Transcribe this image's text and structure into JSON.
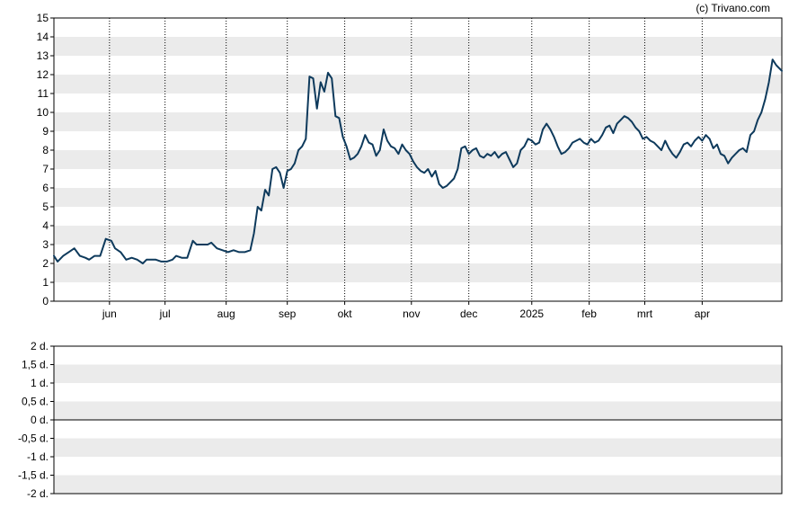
{
  "copyright": "(c) Trivano.com",
  "colors": {
    "line": "#0e3a5c",
    "band": "#ebebeb",
    "axis": "#000000",
    "grid": "#000000"
  },
  "chart_data": [
    {
      "type": "line",
      "ylim": [
        0,
        15
      ],
      "yticks": [
        "0",
        "1",
        "2",
        "3",
        "4",
        "5",
        "6",
        "7",
        "8",
        "9",
        "10",
        "11",
        "12",
        "13",
        "14",
        "15"
      ],
      "xticks": [
        "jun",
        "jul",
        "aug",
        "sep",
        "okt",
        "nov",
        "dec",
        "2025",
        "feb",
        "mrt",
        "apr"
      ],
      "xtick_days": [
        30,
        60,
        93,
        126,
        157,
        193,
        224,
        258,
        289,
        319,
        350
      ],
      "xlim": [
        0,
        393
      ],
      "grid": "vertical dotted at month starts, alternating horizontal bands",
      "series": [
        {
          "x": [
            0,
            2,
            5,
            8,
            11,
            14,
            17,
            19,
            22,
            25,
            28,
            31,
            33,
            36,
            39,
            42,
            45,
            48,
            50,
            52,
            55,
            58,
            61,
            64,
            66,
            69,
            72,
            75,
            77,
            80,
            83,
            85,
            88,
            91,
            94,
            97,
            100,
            103,
            106,
            108,
            110,
            112,
            114,
            116,
            118,
            120,
            122,
            124,
            126,
            128,
            130,
            132,
            134,
            136,
            138,
            140,
            142,
            144,
            146,
            148,
            150,
            152,
            154,
            156,
            158,
            160,
            162,
            164,
            166,
            168,
            170,
            172,
            174,
            176,
            178,
            180,
            182,
            184,
            186,
            188,
            190,
            192,
            194,
            196,
            198,
            200,
            202,
            204,
            206,
            208,
            210,
            212,
            214,
            216,
            218,
            220,
            222,
            224,
            226,
            228,
            230,
            232,
            234,
            236,
            238,
            240,
            242,
            244,
            246,
            248,
            250,
            252,
            254,
            256,
            258,
            260,
            262,
            264,
            266,
            268,
            270,
            272,
            274,
            276,
            278,
            280,
            282,
            284,
            286,
            288,
            290,
            292,
            294,
            296,
            298,
            300,
            302,
            304,
            306,
            308,
            310,
            312,
            314,
            316,
            318,
            320,
            322,
            324,
            326,
            328,
            330,
            332,
            334,
            336,
            338,
            340,
            342,
            344,
            346,
            348,
            350,
            352,
            354,
            356,
            358,
            360,
            362,
            364,
            366,
            368,
            370,
            372,
            374,
            376,
            378,
            380,
            382,
            384,
            386,
            388,
            390,
            393
          ],
          "y": [
            2.4,
            2.1,
            2.4,
            2.6,
            2.8,
            2.4,
            2.3,
            2.2,
            2.4,
            2.4,
            3.3,
            3.2,
            2.8,
            2.6,
            2.2,
            2.3,
            2.2,
            2.0,
            2.2,
            2.2,
            2.2,
            2.1,
            2.1,
            2.2,
            2.4,
            2.3,
            2.3,
            3.2,
            3.0,
            3.0,
            3.0,
            3.1,
            2.8,
            2.7,
            2.6,
            2.7,
            2.6,
            2.6,
            2.7,
            3.6,
            5.0,
            4.8,
            5.9,
            5.6,
            7.0,
            7.1,
            6.8,
            6.0,
            6.9,
            7.0,
            7.3,
            8.0,
            8.2,
            8.6,
            11.9,
            11.8,
            10.2,
            11.6,
            11.1,
            12.1,
            11.8,
            9.8,
            9.7,
            8.7,
            8.2,
            7.5,
            7.6,
            7.8,
            8.2,
            8.8,
            8.4,
            8.3,
            7.7,
            8.0,
            9.1,
            8.5,
            8.2,
            8.1,
            7.8,
            8.3,
            8.0,
            7.8,
            7.4,
            7.1,
            6.9,
            6.8,
            7.0,
            6.6,
            6.9,
            6.2,
            6.0,
            6.1,
            6.3,
            6.5,
            7.0,
            8.1,
            8.2,
            7.8,
            8.0,
            8.1,
            7.7,
            7.6,
            7.8,
            7.7,
            7.9,
            7.6,
            7.8,
            7.9,
            7.5,
            7.1,
            7.3,
            8.0,
            8.2,
            8.6,
            8.5,
            8.3,
            8.4,
            9.1,
            9.4,
            9.1,
            8.7,
            8.2,
            7.8,
            7.9,
            8.1,
            8.4,
            8.5,
            8.6,
            8.4,
            8.3,
            8.6,
            8.4,
            8.5,
            8.8,
            9.2,
            9.3,
            8.9,
            9.4,
            9.6,
            9.8,
            9.7,
            9.5,
            9.2,
            9.0,
            8.6,
            8.7,
            8.5,
            8.4,
            8.2,
            8.0,
            8.5,
            8.1,
            7.8,
            7.6,
            7.9,
            8.3,
            8.4,
            8.2,
            8.5,
            8.7,
            8.5,
            8.8,
            8.6,
            8.1,
            8.3,
            7.8,
            7.7,
            7.3,
            7.6,
            7.8,
            8.0,
            8.1,
            7.9,
            8.8,
            9.0,
            9.6,
            10.0,
            10.7,
            11.6,
            12.8,
            12.5,
            12.2
          ]
        }
      ]
    },
    {
      "type": "line",
      "ylim": [
        -2,
        2
      ],
      "yticks": [
        "-2 d.",
        "-1,5 d.",
        "-1 d.",
        "-0,5 d.",
        "0 d.",
        "0,5 d.",
        "1 d.",
        "1,5 d.",
        "2 d."
      ],
      "grid": "alternating horizontal bands, solid line at 0 d.",
      "series": []
    }
  ]
}
